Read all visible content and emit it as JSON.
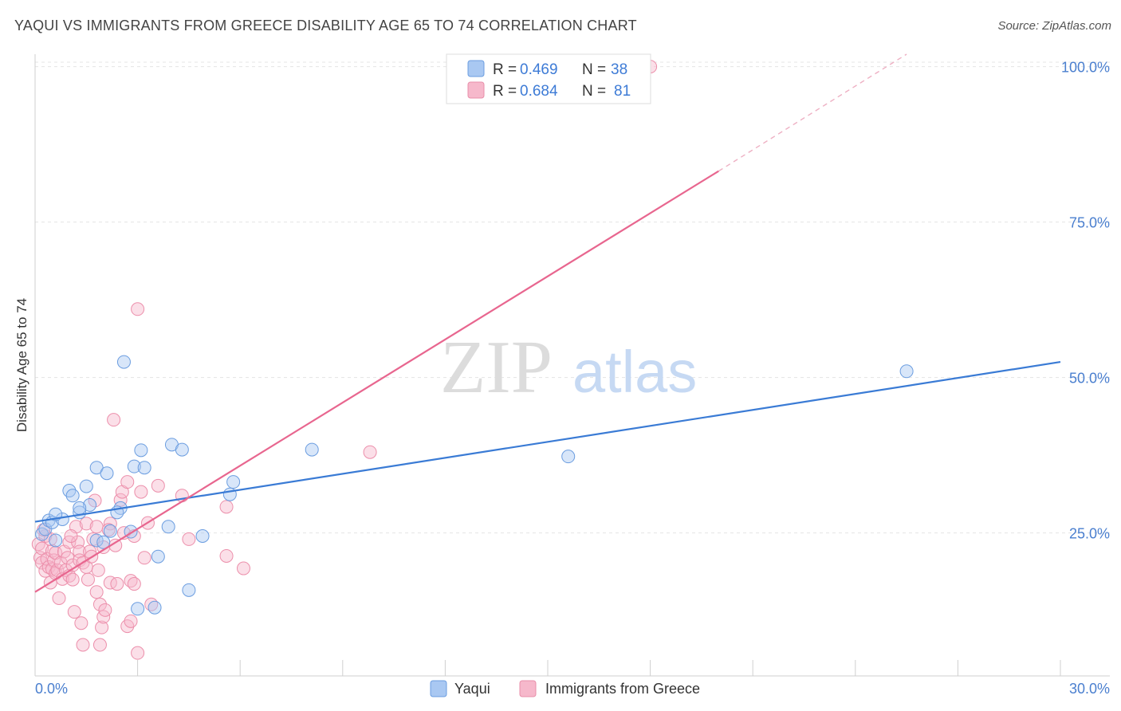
{
  "header": {
    "title": "YAQUI VS IMMIGRANTS FROM GREECE DISABILITY AGE 65 TO 74 CORRELATION CHART",
    "source": "Source: ZipAtlas.com"
  },
  "watermark": {
    "zip": "ZIP",
    "atlas": "atlas"
  },
  "colors": {
    "blue": "#3a7bd5",
    "blue_fill": "#a9c8f2",
    "pink": "#e8668f",
    "pink_fill": "#f6b8cb",
    "tick_label": "#4a7fcf"
  },
  "stats_legend": {
    "rows": [
      {
        "r_label": "R =",
        "r_value": "0.469",
        "n_label": "N =",
        "n_value": "38"
      },
      {
        "r_label": "R =",
        "r_value": "0.684",
        "n_label": "N =",
        "n_value": "81"
      }
    ]
  },
  "chart_data": {
    "type": "scatter",
    "title": "YAQUI VS IMMIGRANTS FROM GREECE DISABILITY AGE 65 TO 74 CORRELATION CHART",
    "xlabel": "",
    "ylabel": "Disability Age 65 to 74",
    "xlim": [
      0,
      30
    ],
    "ylim": [
      2,
      102
    ],
    "x_tick_labels": [
      "0.0%",
      "30.0%"
    ],
    "y_ticks": [
      25,
      50,
      75,
      100
    ],
    "y_tick_labels": [
      "25.0%",
      "50.0%",
      "75.0%",
      "100.0%"
    ],
    "legend": [
      "Yaqui",
      "Immigrants from Greece"
    ],
    "series": [
      {
        "name": "Yaqui",
        "r": 0.469,
        "n": 38,
        "trend": {
          "x0": 0,
          "y0": 26.8,
          "x1": 30,
          "y1": 52.5
        },
        "points": [
          [
            0.2,
            24.8
          ],
          [
            0.3,
            25.6
          ],
          [
            0.4,
            27.0
          ],
          [
            0.5,
            26.7
          ],
          [
            0.6,
            23.8
          ],
          [
            0.8,
            27.2
          ],
          [
            1.0,
            31.8
          ],
          [
            1.1,
            31.0
          ],
          [
            1.3,
            28.3
          ],
          [
            1.5,
            32.5
          ],
          [
            1.6,
            29.5
          ],
          [
            1.8,
            35.5
          ],
          [
            1.8,
            23.8
          ],
          [
            2.0,
            23.5
          ],
          [
            2.1,
            34.6
          ],
          [
            2.2,
            25.3
          ],
          [
            2.5,
            29.0
          ],
          [
            2.4,
            28.3
          ],
          [
            2.6,
            52.5
          ],
          [
            2.8,
            25.2
          ],
          [
            2.9,
            35.7
          ],
          [
            3.1,
            38.3
          ],
          [
            3.2,
            35.5
          ],
          [
            3.0,
            12.8
          ],
          [
            3.5,
            13.0
          ],
          [
            3.6,
            21.2
          ],
          [
            3.9,
            26.0
          ],
          [
            4.0,
            39.2
          ],
          [
            4.3,
            38.4
          ],
          [
            4.5,
            15.8
          ],
          [
            4.9,
            24.5
          ],
          [
            5.7,
            31.2
          ],
          [
            5.8,
            33.2
          ],
          [
            8.1,
            38.4
          ],
          [
            15.6,
            37.3
          ],
          [
            25.5,
            51.0
          ],
          [
            0.6,
            28.0
          ],
          [
            1.3,
            29.0
          ]
        ]
      },
      {
        "name": "Immigrants from Greece",
        "r": 0.684,
        "n": 81,
        "trend": {
          "x0": 0,
          "y0": 15.5,
          "x1": 20.0,
          "y1": 83.2
        },
        "trend_dashed": {
          "x0": 20.0,
          "y0": 83.2,
          "x1": 25.5,
          "y1": 102.0
        },
        "points": [
          [
            0.1,
            23.2
          ],
          [
            0.15,
            21.0
          ],
          [
            0.2,
            20.2
          ],
          [
            0.2,
            22.5
          ],
          [
            0.3,
            24.5
          ],
          [
            0.3,
            18.9
          ],
          [
            0.35,
            20.8
          ],
          [
            0.4,
            19.5
          ],
          [
            0.45,
            17.0
          ],
          [
            0.5,
            19.2
          ],
          [
            0.5,
            22.1
          ],
          [
            0.55,
            20.6
          ],
          [
            0.6,
            18.5
          ],
          [
            0.6,
            21.8
          ],
          [
            0.65,
            19.0
          ],
          [
            0.7,
            14.5
          ],
          [
            0.75,
            20.2
          ],
          [
            0.8,
            17.6
          ],
          [
            0.85,
            22.0
          ],
          [
            0.9,
            19.0
          ],
          [
            0.95,
            21.0
          ],
          [
            1.0,
            18.1
          ],
          [
            1.0,
            23.5
          ],
          [
            1.1,
            19.8
          ],
          [
            1.1,
            17.5
          ],
          [
            1.15,
            12.3
          ],
          [
            1.2,
            26.0
          ],
          [
            1.25,
            23.5
          ],
          [
            1.3,
            22.0
          ],
          [
            1.3,
            20.6
          ],
          [
            1.35,
            10.5
          ],
          [
            1.4,
            7.0
          ],
          [
            1.4,
            20.2
          ],
          [
            1.5,
            26.5
          ],
          [
            1.5,
            19.5
          ],
          [
            1.55,
            17.5
          ],
          [
            1.6,
            22.0
          ],
          [
            1.65,
            21.2
          ],
          [
            1.7,
            24.0
          ],
          [
            1.75,
            30.2
          ],
          [
            1.8,
            26.0
          ],
          [
            1.8,
            15.5
          ],
          [
            1.85,
            19.0
          ],
          [
            1.9,
            13.5
          ],
          [
            1.9,
            7.0
          ],
          [
            1.95,
            9.8
          ],
          [
            2.0,
            11.5
          ],
          [
            2.0,
            22.7
          ],
          [
            2.05,
            12.6
          ],
          [
            2.2,
            26.5
          ],
          [
            2.2,
            17.0
          ],
          [
            2.3,
            43.2
          ],
          [
            2.35,
            23.0
          ],
          [
            2.4,
            16.8
          ],
          [
            2.5,
            30.3
          ],
          [
            2.55,
            31.6
          ],
          [
            2.6,
            25.0
          ],
          [
            2.7,
            33.2
          ],
          [
            2.7,
            10.0
          ],
          [
            2.8,
            17.3
          ],
          [
            2.8,
            10.8
          ],
          [
            2.9,
            16.8
          ],
          [
            2.9,
            24.5
          ],
          [
            3.0,
            61.0
          ],
          [
            3.0,
            5.7
          ],
          [
            3.1,
            31.6
          ],
          [
            3.2,
            21.0
          ],
          [
            3.3,
            26.6
          ],
          [
            3.4,
            13.5
          ],
          [
            3.6,
            32.6
          ],
          [
            4.3,
            31.0
          ],
          [
            4.5,
            24.0
          ],
          [
            5.6,
            29.2
          ],
          [
            5.6,
            21.3
          ],
          [
            6.1,
            19.3
          ],
          [
            9.8,
            38.0
          ],
          [
            18.0,
            100.0
          ],
          [
            0.25,
            25.5
          ],
          [
            0.45,
            24.0
          ],
          [
            1.05,
            24.5
          ],
          [
            2.15,
            25.5
          ]
        ]
      }
    ]
  },
  "bottom_legend": {
    "items": [
      {
        "label": "Yaqui"
      },
      {
        "label": "Immigrants from Greece"
      }
    ]
  }
}
